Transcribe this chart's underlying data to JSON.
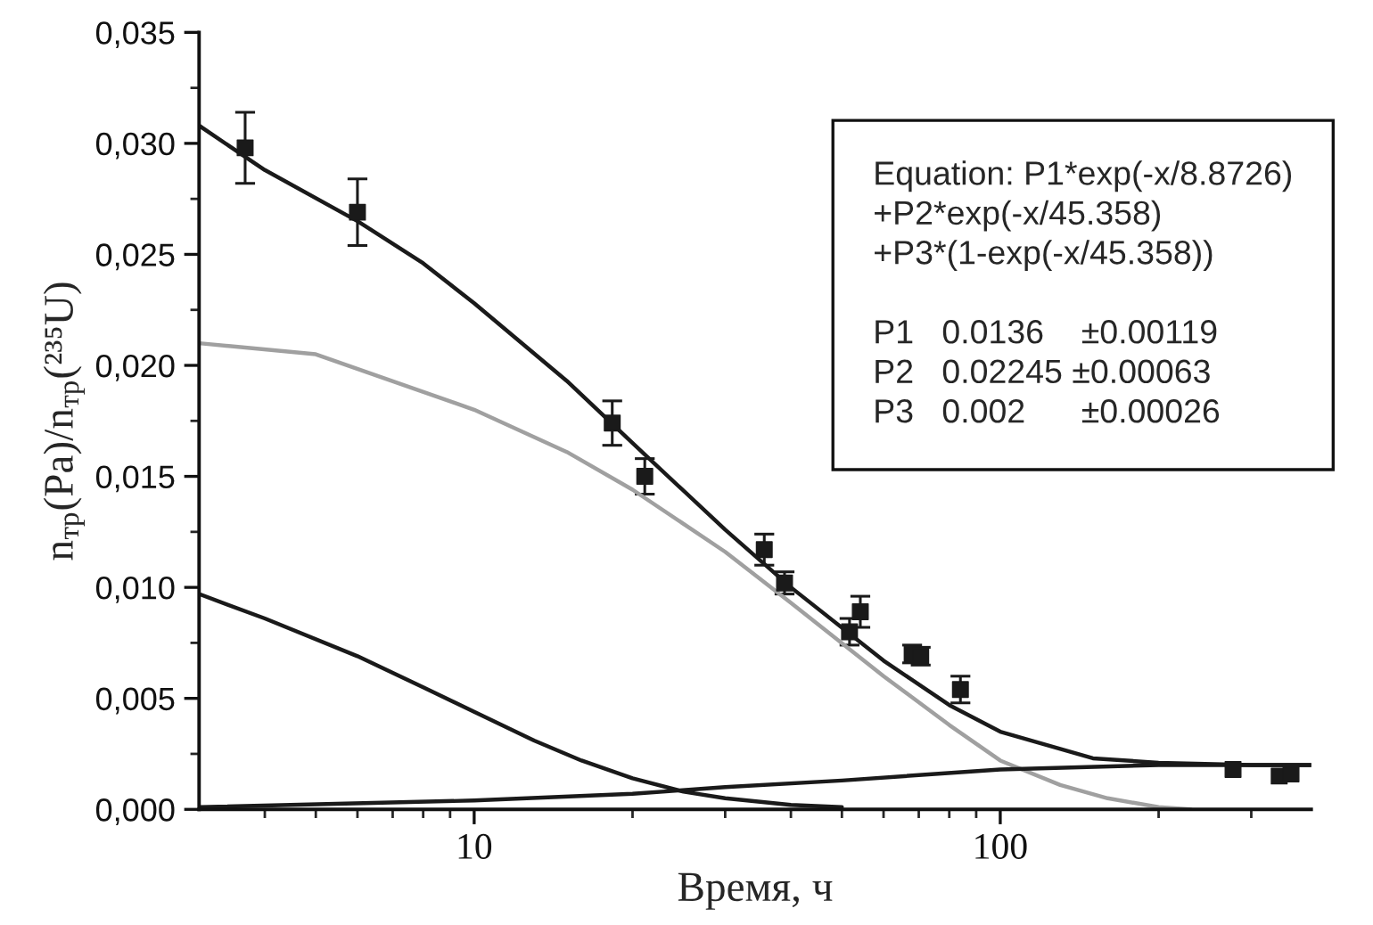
{
  "chart_data": {
    "type": "line",
    "xlabel": "Время, ч",
    "ylabel": "n$_{тр}$(Pa)/n$_{тр}$(²³⁵U)",
    "log": "x",
    "xlim": [
      3,
      390
    ],
    "ylim": [
      0,
      0.035
    ],
    "xticks": [
      {
        "value": 4,
        "label": null
      },
      {
        "value": 5,
        "label": null
      },
      {
        "value": 6,
        "label": null
      },
      {
        "value": 7,
        "label": null
      },
      {
        "value": 8,
        "label": null
      },
      {
        "value": 9,
        "label": null
      },
      10,
      {
        "value": 20,
        "label": null
      },
      {
        "value": 30,
        "label": null
      },
      {
        "value": 40,
        "label": null
      },
      {
        "value": 50,
        "label": null
      },
      {
        "value": 60,
        "label": null
      },
      {
        "value": 70,
        "label": null
      },
      {
        "value": 80,
        "label": null
      },
      {
        "value": 90,
        "label": null
      },
      100,
      {
        "value": 200,
        "label": null
      },
      {
        "value": 300,
        "label": null
      }
    ],
    "yticks": [
      {
        "value": 0,
        "label": "0,000"
      },
      {
        "value": 0.0025,
        "label": null
      },
      {
        "value": 0.005,
        "label": "0,005"
      },
      {
        "value": 0.0075,
        "label": null
      },
      {
        "value": 0.01,
        "label": "0,010"
      },
      {
        "value": 0.0125,
        "label": null
      },
      {
        "value": 0.015,
        "label": "0,015"
      },
      {
        "value": 0.0175,
        "label": null
      },
      {
        "value": 0.02,
        "label": "0,020"
      },
      {
        "value": 0.0225,
        "label": null
      },
      {
        "value": 0.025,
        "label": "0,025"
      },
      {
        "value": 0.0275,
        "label": null
      },
      {
        "value": 0.03,
        "label": "0,030"
      },
      {
        "value": 0.0325,
        "label": null
      },
      {
        "value": 0.035,
        "label": "0,035"
      }
    ],
    "grid": false,
    "legend": false,
    "annotations": [
      "Equation: P1*exp(-x/8.8726)\n+P2*exp(-x/45.358)\n+P3*(1-exp(-x/45.358))\n\nP1   0.0136    ±0.00119\nP2   0.02245 ±0.00063\nP3   0.002      ±0.00026"
    ],
    "series": [
      {
        "type": "scatter",
        "color": "#1a1a1a",
        "marker": "square",
        "x": [
          3.67,
          6,
          18.3,
          21.1,
          35.6,
          38.9,
          51.7,
          54.2,
          68,
          70.6,
          84,
          277,
          339,
          357
        ],
        "values": [
          0.0298,
          0.0269,
          0.0174,
          0.015,
          0.0117,
          0.0102,
          0.008,
          0.0089,
          0.007,
          0.0069,
          0.0054,
          0.0018,
          0.0015,
          0.0016
        ],
        "errors": [
          0.0016,
          0.0015,
          0.001,
          0.0008,
          0.0007,
          0.0005,
          0.0006,
          0.0007,
          0.0004,
          0.0004,
          0.0006,
          null,
          null,
          null
        ]
      },
      {
        "color": "#1a1a1a",
        "x": [
          3,
          4,
          6,
          8,
          10,
          15,
          20,
          30,
          40,
          60,
          80,
          100,
          150,
          200,
          300,
          390
        ],
        "values": [
          0.0308,
          0.0288,
          0.0265,
          0.0246,
          0.0228,
          0.0193,
          0.0165,
          0.0126,
          0.01,
          0.0067,
          0.0047,
          0.0035,
          0.0023,
          0.0021,
          0.002,
          0.002
        ]
      },
      {
        "color": "#a0a0a0",
        "x": [
          3,
          5,
          10,
          15,
          20,
          30,
          40,
          60,
          80,
          100,
          130,
          160,
          200,
          230
        ],
        "values": [
          0.021,
          0.0205,
          0.018,
          0.0161,
          0.0144,
          0.0116,
          0.0093,
          0.006,
          0.0038,
          0.0022,
          0.0011,
          0.0005,
          0.0001,
          0
        ]
      },
      {
        "color": "#1a1a1a",
        "x": [
          3,
          4,
          6,
          8,
          10,
          13,
          16,
          20,
          25,
          30,
          40,
          50
        ],
        "values": [
          0.0097,
          0.0086,
          0.0069,
          0.0055,
          0.0044,
          0.0031,
          0.0022,
          0.0014,
          0.0008,
          0.0005,
          0.0002,
          0.0001
        ]
      },
      {
        "color": "#1a1a1a",
        "x": [
          3,
          10,
          20,
          30,
          50,
          100,
          200,
          390
        ],
        "values": [
          0.0001,
          0.0004,
          0.0007,
          0.001,
          0.0013,
          0.0018,
          0.002,
          0.002
        ]
      }
    ]
  }
}
